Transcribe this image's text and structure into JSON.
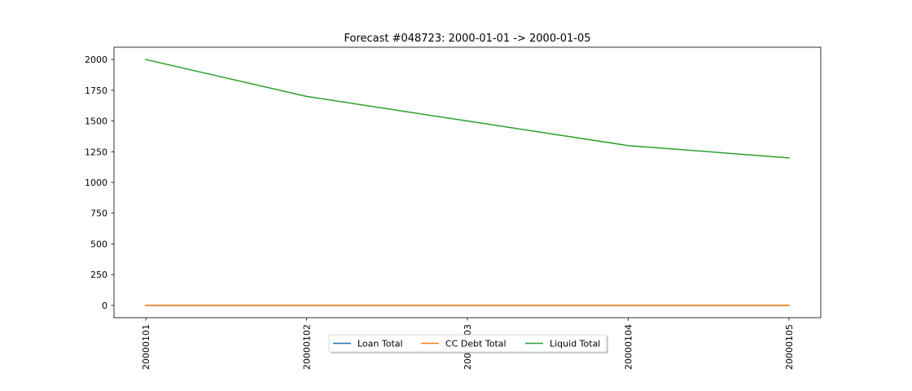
{
  "chart_data": {
    "type": "line",
    "title": "Forecast #048723: 2000-01-01 -> 2000-01-05",
    "xlabel": "",
    "ylabel": "",
    "categories": [
      "20000101",
      "20000102",
      "20000103",
      "20000104",
      "20000105"
    ],
    "ylim": [
      -100,
      2100
    ],
    "yticks": [
      0,
      250,
      500,
      750,
      1000,
      1250,
      1500,
      1750,
      2000
    ],
    "grid": false,
    "legend_position": "bottom-center",
    "series": [
      {
        "name": "Loan Total",
        "color": "#1f77b4",
        "values": [
          0,
          0,
          0,
          0,
          0
        ]
      },
      {
        "name": "CC Debt Total",
        "color": "#ff7f0e",
        "values": [
          0,
          0,
          0,
          0,
          0
        ]
      },
      {
        "name": "Liquid Total",
        "color": "#2ca02c",
        "values": [
          2000,
          1700,
          1500,
          1300,
          1200
        ]
      }
    ]
  }
}
